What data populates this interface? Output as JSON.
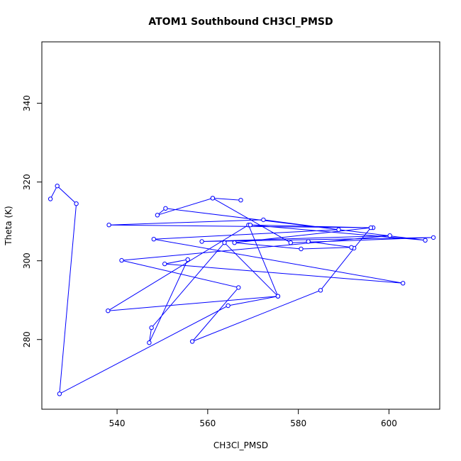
{
  "chart_data": {
    "type": "line",
    "title": "ATOM1 Southbound CH3Cl_PMSD",
    "xlabel": "CH3Cl_PMSD",
    "ylabel": "Theta (K)",
    "xlim": [
      523.4,
      611.2
    ],
    "ylim": [
      262.3,
      355.6
    ],
    "xticks": [
      540,
      560,
      580,
      600
    ],
    "yticks": [
      280,
      300,
      320,
      340
    ],
    "grid": false,
    "legend": "none",
    "markers": "open-circle",
    "color": "#0000ff",
    "x": [
      525.3,
      526.8,
      531.0,
      527.3,
      564.5,
      575.5,
      538.0,
      569.0,
      575.5,
      563.7,
      547.6,
      547.1,
      555.6,
      550.5,
      603.1,
      548.1,
      588.9,
      572.3,
      538.2,
      596.5,
      569.4,
      608.0,
      550.7,
      548.9,
      561.1,
      567.3,
      561.1,
      578.3,
      609.8,
      558.7,
      600.2,
      541.0,
      566.8,
      556.6,
      584.9,
      592.3,
      596.0,
      565.9,
      580.6,
      591.7,
      582.2
    ],
    "y": [
      315.7,
      319.0,
      314.5,
      266.2,
      288.6,
      291.0,
      287.3,
      309.1,
      291.0,
      304.6,
      283.0,
      279.2,
      300.3,
      299.2,
      294.3,
      305.5,
      307.9,
      310.4,
      309.1,
      308.4,
      309.1,
      305.2,
      313.3,
      311.6,
      315.9,
      315.4,
      315.9,
      304.6,
      305.9,
      304.9,
      306.4,
      300.1,
      293.2,
      279.5,
      292.5,
      303.2,
      308.4,
      304.6,
      303.0,
      303.4,
      304.9
    ]
  }
}
